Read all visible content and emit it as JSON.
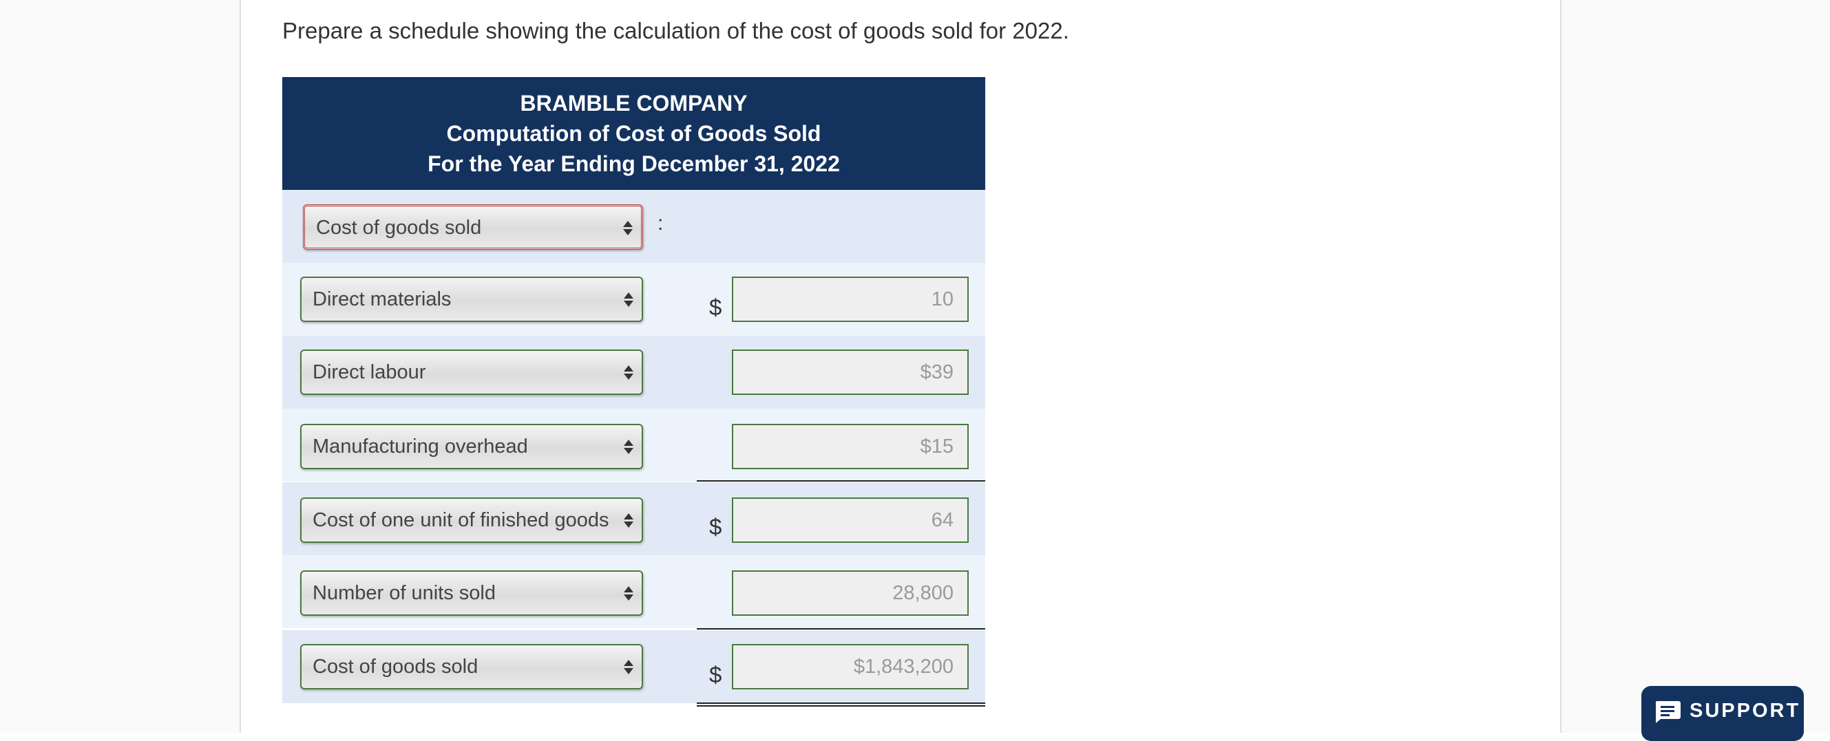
{
  "instruction": "Prepare a schedule showing the calculation of the cost of goods sold for 2022.",
  "table": {
    "company": "BRAMBLE COMPANY",
    "statement": "Computation of Cost of Goods Sold",
    "period": "For the Year Ending December 31, 2022"
  },
  "heading_row": {
    "select_value": "Cost of goods sold",
    "colon": ":"
  },
  "rows": [
    {
      "select_value": "Direct materials",
      "dollar": "$",
      "amount": "10"
    },
    {
      "select_value": "Direct labour",
      "dollar": "",
      "amount": "$39"
    },
    {
      "select_value": "Manufacturing overhead",
      "dollar": "",
      "amount": "$15"
    },
    {
      "select_value": "Cost of one unit of finished goods",
      "dollar": "$",
      "amount": "64"
    },
    {
      "select_value": "Number of units sold",
      "dollar": "",
      "amount": "28,800"
    },
    {
      "select_value": "Cost of goods sold",
      "dollar": "$",
      "amount": "$1,843,200"
    }
  ],
  "support": {
    "label": "SUPPORT",
    "icon": "chat-message-icon"
  },
  "colors": {
    "header_bg": "#14325e",
    "row_dark": "#e0e9f5",
    "row_light": "#edf3fa",
    "input_border": "#4a7a3e",
    "error_border": "#b03a3a"
  }
}
